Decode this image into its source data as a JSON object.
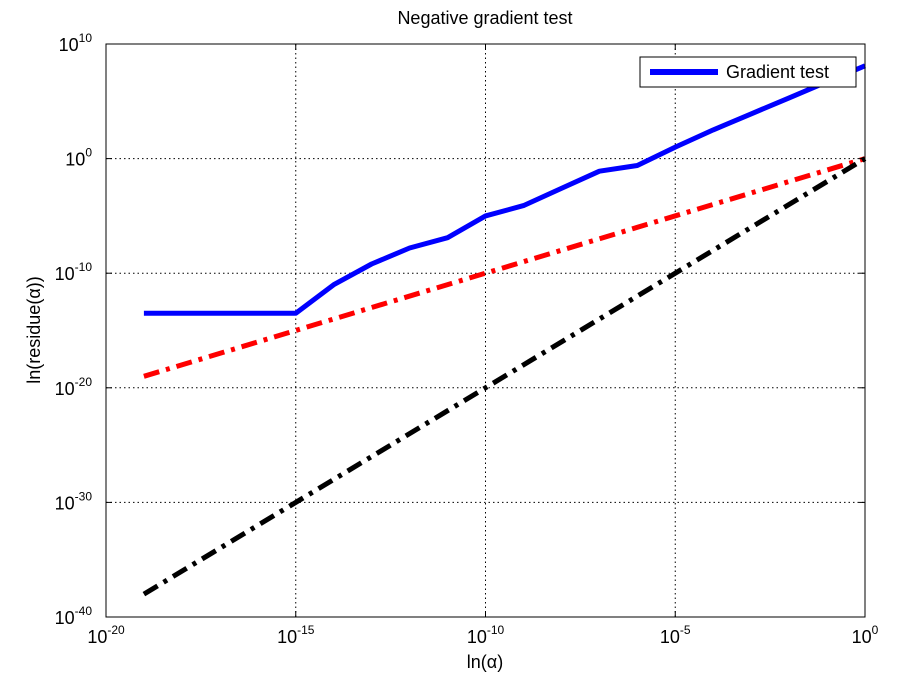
{
  "chart_data": {
    "type": "line",
    "title": "Negative gradient test",
    "xlabel": "ln(α)",
    "ylabel": "ln(residue(α))",
    "xscale": "log",
    "yscale": "log",
    "xlim_exp": [
      -20,
      0
    ],
    "ylim_exp": [
      -40,
      10
    ],
    "xticks": [
      {
        "base": "10",
        "exp": "-20",
        "value_exp": -20
      },
      {
        "base": "10",
        "exp": "-15",
        "value_exp": -15
      },
      {
        "base": "10",
        "exp": "-10",
        "value_exp": -10
      },
      {
        "base": "10",
        "exp": "-5",
        "value_exp": -5
      },
      {
        "base": "10",
        "exp": "0",
        "value_exp": 0
      }
    ],
    "yticks": [
      {
        "base": "10",
        "exp": "10",
        "value_exp": 10
      },
      {
        "base": "10",
        "exp": "0",
        "value_exp": 0
      },
      {
        "base": "10",
        "exp": "-10",
        "value_exp": -10
      },
      {
        "base": "10",
        "exp": "-20",
        "value_exp": -20
      },
      {
        "base": "10",
        "exp": "-30",
        "value_exp": -30
      },
      {
        "base": "10",
        "exp": "-40",
        "value_exp": -40
      }
    ],
    "grid": true,
    "legend_position": "top-right",
    "series": [
      {
        "name": "Gradient test",
        "color": "#0000ff",
        "style": "solid",
        "x_exp": [
          -19,
          -18,
          -17,
          -16,
          -15,
          -14,
          -13,
          -12,
          -11,
          -10,
          -9,
          -8,
          -7,
          -6,
          -5,
          -4,
          -3,
          -2,
          -1,
          0
        ],
        "y_exp": [
          -13.5,
          -13.5,
          -13.5,
          -13.5,
          -13.5,
          -11,
          -9.2,
          -7.8,
          -6.9,
          -5,
          -4.1,
          -2.6,
          -1.1,
          -0.6,
          1,
          2.5,
          3.9,
          5.3,
          6.7,
          8.1
        ]
      },
      {
        "color": "#ff0000",
        "style": "dash-dot",
        "x_exp": [
          -19,
          0
        ],
        "y_exp": [
          -19,
          0
        ]
      },
      {
        "color": "#000000",
        "style": "dash-dot",
        "x_exp": [
          -19,
          0
        ],
        "y_exp": [
          -38,
          0
        ]
      }
    ]
  }
}
